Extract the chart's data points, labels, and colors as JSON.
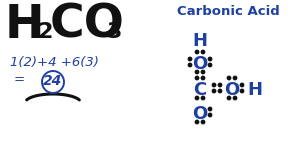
{
  "bg_color": "#ffffff",
  "formula_color": "#111111",
  "calc_color": "#2040a0",
  "lewis_color": "#2040a0",
  "dot_color": "#111111",
  "carbonic_acid_title": "Carbonic Acid",
  "calc_line1": "1(2)+4 +6(3)",
  "circled_num": "24"
}
